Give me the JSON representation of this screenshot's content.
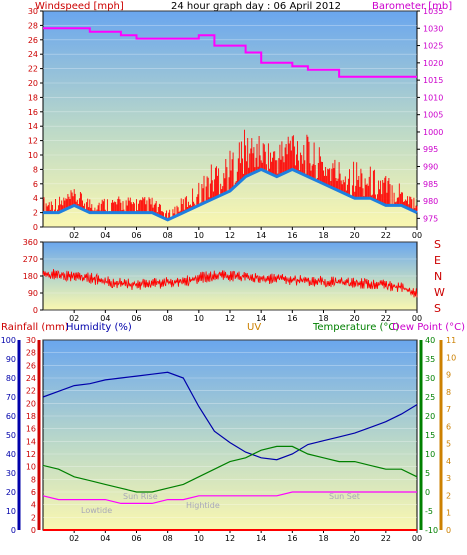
{
  "header": {
    "title": "24 hour graph day : 06 April 2012",
    "windspeed_label": "Windspeed [mph]",
    "barometer_label": "Barometer [mb]"
  },
  "rain_header": {
    "rainfall_label": "Rainfall (mm)",
    "humidity_label": "Humidity (%)",
    "uv_label": "UV",
    "temperature_label": "Temperature (°C)",
    "dewpoint_label": "Dew Point (°C)"
  },
  "colors": {
    "wind": "#ff0000",
    "wind_avg": "#1e7fe0",
    "barometer": "#ff00ff",
    "direction": "#ff0000",
    "rain": "#ff0000",
    "humidity": "#0000aa",
    "temperature": "#008000",
    "dewpoint": "#ff00ff",
    "uv": "#cc8000"
  },
  "compass": [
    "S",
    "E",
    "N",
    "W",
    "S"
  ],
  "annotations": {
    "sunrise": "Sun Rise",
    "sunset": "Sun Set",
    "lowtide": "Lowtide",
    "hightide": "Hightide"
  },
  "chart_data": [
    {
      "type": "line",
      "name": "wind-barometer",
      "x_ticks": [
        "02",
        "04",
        "06",
        "08",
        "10",
        "12",
        "14",
        "16",
        "18",
        "20",
        "22",
        "00"
      ],
      "y_left_ticks": [
        0,
        2,
        4,
        6,
        8,
        10,
        12,
        14,
        16,
        18,
        20,
        22,
        24,
        26,
        28,
        30
      ],
      "y_left_range": [
        0,
        30
      ],
      "y_right_ticks": [
        975,
        980,
        985,
        990,
        995,
        1000,
        1005,
        1010,
        1015,
        1020,
        1025,
        1030,
        1035
      ],
      "y_right_range": [
        972.5,
        1035
      ],
      "series": [
        {
          "axis": "left",
          "hours": [
            0,
            1,
            2,
            3,
            4,
            5,
            6,
            7,
            8,
            9,
            10,
            11,
            12,
            13,
            14,
            15,
            16,
            17,
            18,
            19,
            20,
            21,
            22,
            23,
            24
          ],
          "values": [
            2,
            2,
            3,
            2,
            2,
            2,
            2,
            2,
            1,
            2,
            3,
            4,
            5,
            7,
            8,
            7,
            8,
            7,
            6,
            5,
            4,
            4,
            3,
            3,
            2
          ]
        },
        {
          "axis": "left",
          "hours": [
            0,
            1,
            2,
            3,
            4,
            5,
            6,
            7,
            8,
            9,
            10,
            11,
            12,
            13,
            14,
            15,
            16,
            17,
            18,
            19,
            20,
            21,
            22,
            23,
            24
          ],
          "values": [
            4,
            4,
            5,
            4,
            4,
            4,
            4,
            4,
            2,
            4,
            6,
            9,
            10,
            13,
            12,
            11,
            14,
            12,
            10,
            9,
            9,
            8,
            7,
            6,
            4
          ]
        },
        {
          "axis": "right",
          "hours": [
            0,
            1,
            2,
            3,
            4,
            5,
            6,
            7,
            8,
            9,
            10,
            11,
            12,
            13,
            14,
            15,
            16,
            17,
            18,
            19,
            20,
            21,
            22,
            23,
            24
          ],
          "values": [
            1030,
            1030,
            1030,
            1029,
            1029,
            1028,
            1027,
            1027,
            1027,
            1027,
            1028,
            1025,
            1025,
            1023,
            1020,
            1020,
            1019,
            1018,
            1018,
            1016,
            1016,
            1016,
            1016,
            1016,
            1016
          ]
        }
      ]
    },
    {
      "type": "line",
      "name": "wind-direction",
      "x_ticks": [
        "02",
        "04",
        "06",
        "08",
        "10",
        "12",
        "14",
        "16",
        "18",
        "20",
        "22",
        "00"
      ],
      "y_ticks": [
        0,
        90,
        180,
        270,
        360
      ],
      "y_range": [
        0,
        360
      ],
      "series": [
        {
          "hours": [
            0,
            1,
            2,
            3,
            4,
            5,
            6,
            7,
            8,
            9,
            10,
            11,
            12,
            13,
            14,
            15,
            16,
            17,
            18,
            19,
            20,
            21,
            22,
            23,
            24
          ],
          "values": [
            185,
            190,
            175,
            170,
            150,
            140,
            135,
            140,
            145,
            150,
            170,
            180,
            180,
            175,
            165,
            165,
            160,
            155,
            150,
            145,
            145,
            140,
            130,
            120,
            90
          ]
        }
      ]
    },
    {
      "type": "line",
      "name": "rain-humidity-temperature",
      "x_ticks": [
        "02",
        "04",
        "06",
        "08",
        "10",
        "12",
        "14",
        "16",
        "18",
        "20",
        "22",
        "00"
      ],
      "rain_ticks": [
        0,
        2,
        4,
        6,
        8,
        10,
        12,
        14,
        16,
        18,
        20,
        22,
        24,
        26,
        28,
        30
      ],
      "rain_range": [
        0,
        30
      ],
      "humidity_ticks": [
        0,
        10,
        20,
        30,
        40,
        50,
        60,
        70,
        80,
        90,
        100
      ],
      "humidity_range": [
        0,
        100
      ],
      "uv_ticks": [
        0,
        1,
        2,
        3,
        4,
        5,
        6,
        7,
        8,
        9,
        10,
        11
      ],
      "uv_range": [
        0,
        11
      ],
      "temperature_ticks": [
        -10,
        -5,
        0,
        5,
        10,
        15,
        20,
        25,
        30,
        35,
        40
      ],
      "temperature_range": [
        -10,
        40
      ],
      "series": [
        {
          "axis": "rain",
          "hours": [
            0,
            24
          ],
          "values": [
            0,
            0
          ]
        },
        {
          "axis": "humidity",
          "hours": [
            0,
            1,
            2,
            3,
            4,
            5,
            6,
            7,
            8,
            9,
            10,
            11,
            12,
            13,
            14,
            15,
            16,
            17,
            18,
            19,
            20,
            21,
            22,
            23,
            24
          ],
          "values": [
            70,
            73,
            76,
            77,
            79,
            80,
            81,
            82,
            83,
            80,
            65,
            52,
            46,
            41,
            38,
            37,
            40,
            45,
            47,
            49,
            51,
            54,
            57,
            61,
            66
          ]
        },
        {
          "axis": "temperature",
          "hours": [
            0,
            1,
            2,
            3,
            4,
            5,
            6,
            7,
            8,
            9,
            10,
            11,
            12,
            13,
            14,
            15,
            16,
            17,
            18,
            19,
            20,
            21,
            22,
            23,
            24
          ],
          "values": [
            7,
            6,
            4,
            3,
            2,
            1,
            0,
            0,
            1,
            2,
            4,
            6,
            8,
            9,
            11,
            12,
            12,
            10,
            9,
            8,
            8,
            7,
            6,
            6,
            4
          ]
        },
        {
          "axis": "temperature",
          "hours": [
            0,
            1,
            2,
            3,
            4,
            5,
            6,
            7,
            8,
            9,
            10,
            11,
            12,
            13,
            14,
            15,
            16,
            17,
            18,
            19,
            20,
            21,
            22,
            23,
            24
          ],
          "values": [
            -1,
            -2,
            -2,
            -2,
            -2,
            -3,
            -3,
            -3,
            -2,
            -2,
            -1,
            -1,
            -1,
            -1,
            -1,
            -1,
            0,
            0,
            0,
            0,
            0,
            0,
            0,
            0,
            0
          ]
        }
      ]
    }
  ]
}
